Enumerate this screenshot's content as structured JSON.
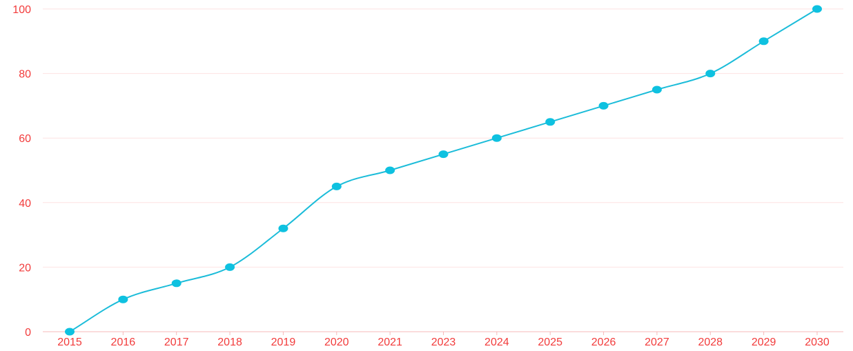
{
  "chart_data": {
    "type": "line",
    "categories": [
      "2015",
      "2016",
      "2017",
      "2018",
      "2019",
      "2020",
      "2021",
      "2023",
      "2024",
      "2025",
      "2026",
      "2027",
      "2028",
      "2029",
      "2030"
    ],
    "series": [
      {
        "values": [
          0,
          10,
          15,
          20,
          32,
          45,
          50,
          55,
          60,
          65,
          70,
          75,
          80,
          90,
          100
        ]
      }
    ],
    "y_ticks": [
      "0",
      "20",
      "40",
      "60",
      "80",
      "100"
    ],
    "ylim": [
      0,
      100
    ],
    "grid": true,
    "legend": "none",
    "title": "",
    "xlabel": "",
    "ylabel": "",
    "colors": {
      "line": "#1bbcd9",
      "point": "#0ec1e0",
      "tick_text": "#f23b3b",
      "grid": "#fde2e2",
      "axis": "#f7b9b9"
    }
  }
}
